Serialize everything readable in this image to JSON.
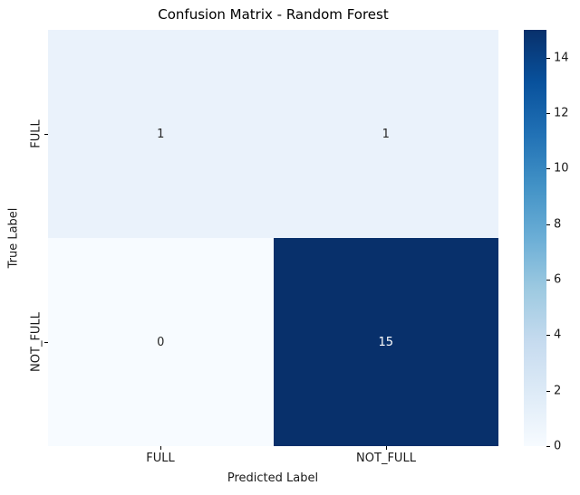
{
  "chart_data": {
    "type": "heatmap",
    "title": "Confusion Matrix - Random Forest",
    "xlabel": "Predicted Label",
    "ylabel": "True Label",
    "x_categories": [
      "FULL",
      "NOT_FULL"
    ],
    "y_categories": [
      "FULL",
      "NOT_FULL"
    ],
    "matrix": [
      [
        1,
        1
      ],
      [
        0,
        15
      ]
    ],
    "vmin": 0,
    "vmax": 15,
    "colormap": "Blues",
    "colormap_stops": [
      {
        "t": 0,
        "color": "#f7fbff"
      },
      {
        "t": 0.125,
        "color": "#deebf7"
      },
      {
        "t": 0.25,
        "color": "#c6dbef"
      },
      {
        "t": 0.375,
        "color": "#9ecae1"
      },
      {
        "t": 0.5,
        "color": "#6baed6"
      },
      {
        "t": 0.625,
        "color": "#4292c6"
      },
      {
        "t": 0.75,
        "color": "#2171b5"
      },
      {
        "t": 0.875,
        "color": "#08519c"
      },
      {
        "t": 1,
        "color": "#08306b"
      }
    ],
    "colorbar": {
      "ticks": [
        0,
        2,
        4,
        6,
        8,
        10,
        12,
        14
      ],
      "position": "right"
    },
    "annotation_color_dark": "#262626",
    "annotation_color_light": "#ffffff",
    "grid": false,
    "legend": false
  }
}
